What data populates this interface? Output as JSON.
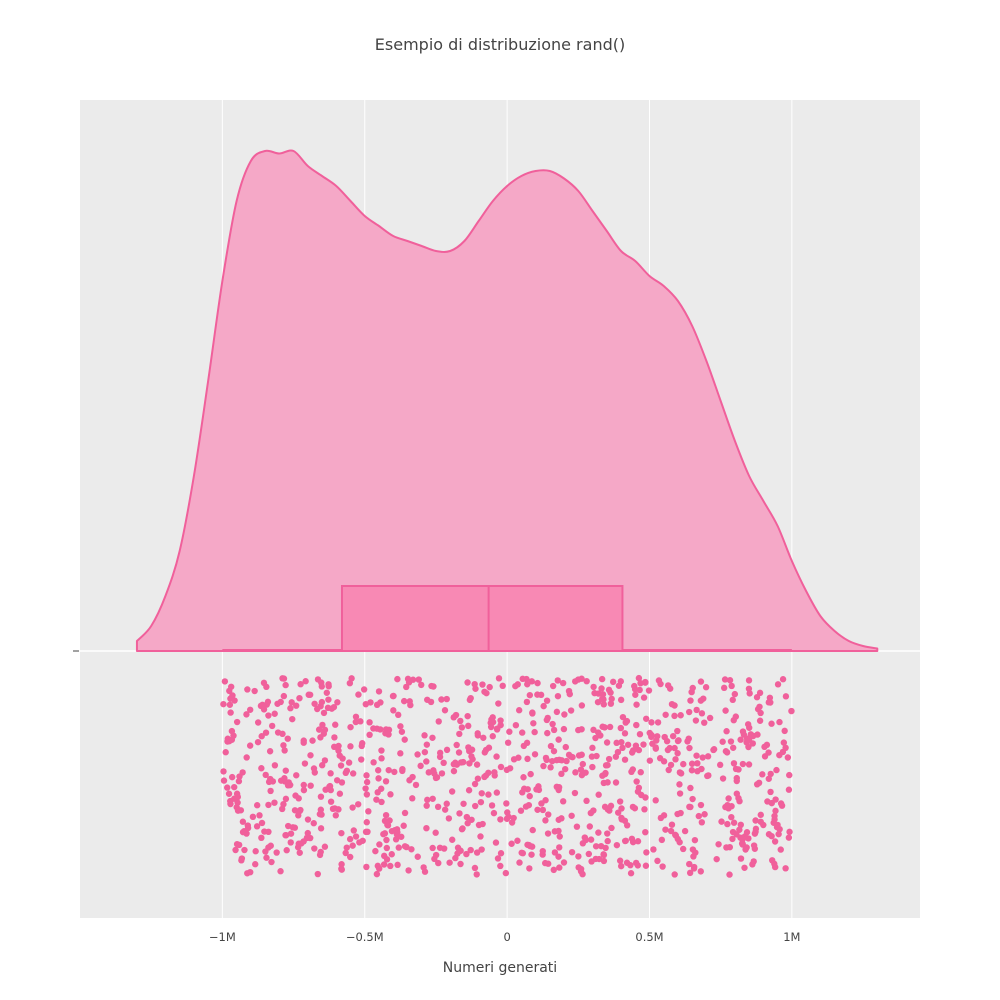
{
  "chart_data": {
    "type": "violin",
    "title": "Esempio di distribuzione rand()",
    "xlabel": "Numeri generati",
    "ylabel": "",
    "xlim": [
      -1.5,
      1.45
    ],
    "x_ticks": [
      {
        "value": -1,
        "label": "−1M"
      },
      {
        "value": -0.5,
        "label": "−0.5M"
      },
      {
        "value": 0,
        "label": "0"
      },
      {
        "value": 0.5,
        "label": "0.5M"
      },
      {
        "value": 1,
        "label": "1M"
      }
    ],
    "grid": true,
    "density": {
      "x": [
        -1.3,
        -1.25,
        -1.2,
        -1.15,
        -1.1,
        -1.05,
        -1.0,
        -0.95,
        -0.9,
        -0.85,
        -0.8,
        -0.75,
        -0.7,
        -0.65,
        -0.6,
        -0.55,
        -0.5,
        -0.45,
        -0.4,
        -0.35,
        -0.3,
        -0.25,
        -0.2,
        -0.15,
        -0.1,
        -0.05,
        0.0,
        0.05,
        0.1,
        0.15,
        0.2,
        0.25,
        0.3,
        0.35,
        0.4,
        0.45,
        0.5,
        0.55,
        0.6,
        0.65,
        0.7,
        0.75,
        0.8,
        0.85,
        0.9,
        0.95,
        1.0,
        1.05,
        1.1,
        1.15,
        1.2,
        1.25,
        1.3
      ],
      "y": [
        0.02,
        0.05,
        0.11,
        0.2,
        0.35,
        0.54,
        0.74,
        0.9,
        0.98,
        1.0,
        0.995,
        1.0,
        0.97,
        0.95,
        0.93,
        0.9,
        0.87,
        0.85,
        0.83,
        0.82,
        0.81,
        0.8,
        0.8,
        0.82,
        0.86,
        0.9,
        0.93,
        0.95,
        0.96,
        0.96,
        0.945,
        0.92,
        0.88,
        0.84,
        0.8,
        0.78,
        0.75,
        0.73,
        0.7,
        0.65,
        0.58,
        0.5,
        0.42,
        0.35,
        0.3,
        0.25,
        0.18,
        0.12,
        0.07,
        0.04,
        0.02,
        0.01,
        0.005
      ]
    },
    "box": {
      "q1": -0.58,
      "median": -0.065,
      "q3": 0.405,
      "whisker_low": -1.0,
      "whisker_high": 1.0
    },
    "points": {
      "count": 1000,
      "range": [
        -1.0,
        1.0
      ]
    },
    "colors": {
      "fill": "#f5a8c7",
      "line": "#f0609b",
      "box_fill": "#f889b4",
      "point": "#f0609b",
      "plot_bg": "#ebebeb",
      "grid": "#ffffff"
    }
  }
}
